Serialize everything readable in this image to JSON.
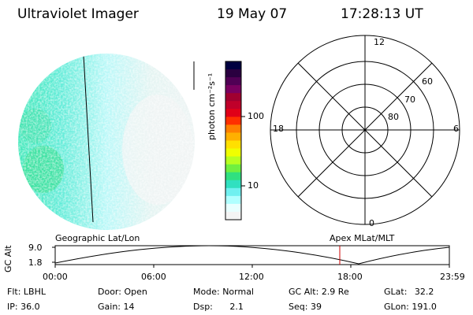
{
  "header": {
    "instrument": "Ultraviolet Imager",
    "date": "19 May 07",
    "time": "17:28:13 UT"
  },
  "colorbar": {
    "unit_label": "photon cm⁻²s⁻¹",
    "ticks": [
      "100",
      "10"
    ],
    "colors": [
      "#000040",
      "#2a0040",
      "#500055",
      "#7a0060",
      "#a00030",
      "#c0002a",
      "#e00018",
      "#ff3000",
      "#ff8000",
      "#ffb000",
      "#ffe000",
      "#f0ff00",
      "#b8ff20",
      "#70f040",
      "#30e080",
      "#30e0c0",
      "#70f0f0",
      "#b0ffff",
      "#e8ffff",
      "#f4f4f4"
    ]
  },
  "polar": {
    "labels": {
      "top": "12",
      "left": "18",
      "right": "6",
      "bottom": "0"
    },
    "lat_labels": [
      "60",
      "70",
      "80"
    ]
  },
  "timeline": {
    "left_title": "Geographic Lat/Lon",
    "right_title": "Apex MLat/MLT",
    "ylabel": "GC Alt",
    "yticks": [
      "9.0",
      "1.8"
    ],
    "xticks": [
      "00:00",
      "06:00",
      "12:00",
      "18:00",
      "23:59"
    ],
    "marker_color": "#cc0000"
  },
  "status": {
    "row1": [
      {
        "label": "Flt:",
        "value": "LBHL"
      },
      {
        "label": "Door:",
        "value": "Open"
      },
      {
        "label": "Mode:",
        "value": "Normal"
      },
      {
        "label": "GC Alt:",
        "value": "2.9 Re"
      },
      {
        "label": "GLat:",
        "value": "32.2"
      }
    ],
    "row2": [
      {
        "label": "IP:",
        "value": "36.0"
      },
      {
        "label": "Gain:",
        "value": "14"
      },
      {
        "label": "Dsp:",
        "value": "2.1"
      },
      {
        "label": "Seq:",
        "value": "39"
      },
      {
        "label": "GLon:",
        "value": "191.0"
      }
    ]
  }
}
